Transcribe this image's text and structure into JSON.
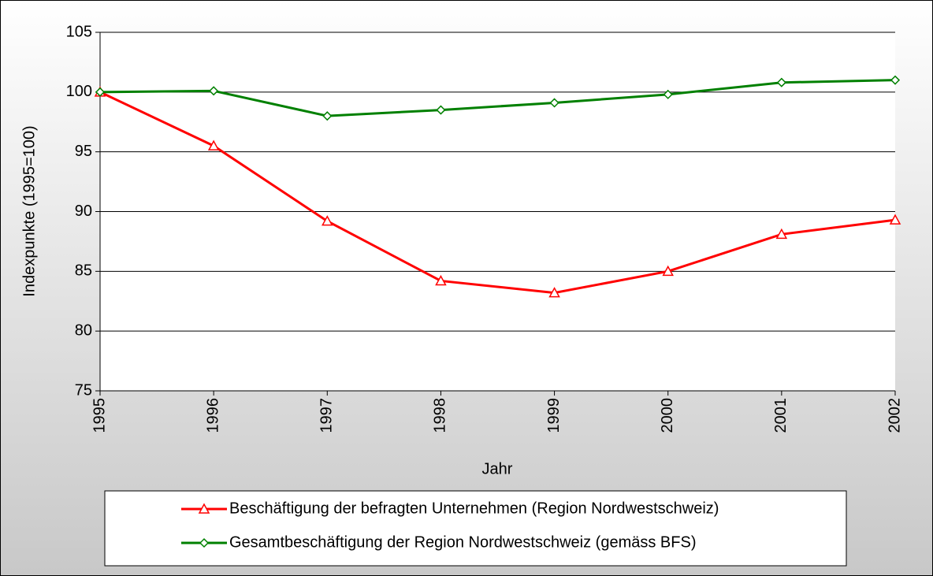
{
  "chart_data": {
    "type": "line",
    "x_label": "Jahr",
    "y_label": "Indexpunkte (1995=100)",
    "x": [
      1995,
      1996,
      1997,
      1998,
      1999,
      2000,
      2001,
      2002
    ],
    "xlim": [
      1995,
      2002
    ],
    "xticks": [
      1995,
      1996,
      1997,
      1998,
      1999,
      2000,
      2001,
      2002
    ],
    "ylim": [
      75,
      105
    ],
    "yticks": [
      75,
      80,
      85,
      90,
      95,
      100,
      105
    ],
    "grid": true,
    "legend": "bottom",
    "series": [
      {
        "name": "Beschäftigung der befragten Unternehmen (Region Nordwestschweiz)",
        "color": "#ff0000",
        "marker": "triangle",
        "values": [
          100,
          95.5,
          89.2,
          84.2,
          83.2,
          85.0,
          88.1,
          89.3
        ]
      },
      {
        "name": "Gesamtbeschäftigung der Region Nordwestschweiz (gemäss BFS)",
        "color": "#008000",
        "marker": "diamond",
        "values": [
          100,
          100.1,
          98.0,
          98.5,
          99.1,
          99.8,
          100.8,
          101.0
        ]
      }
    ]
  }
}
